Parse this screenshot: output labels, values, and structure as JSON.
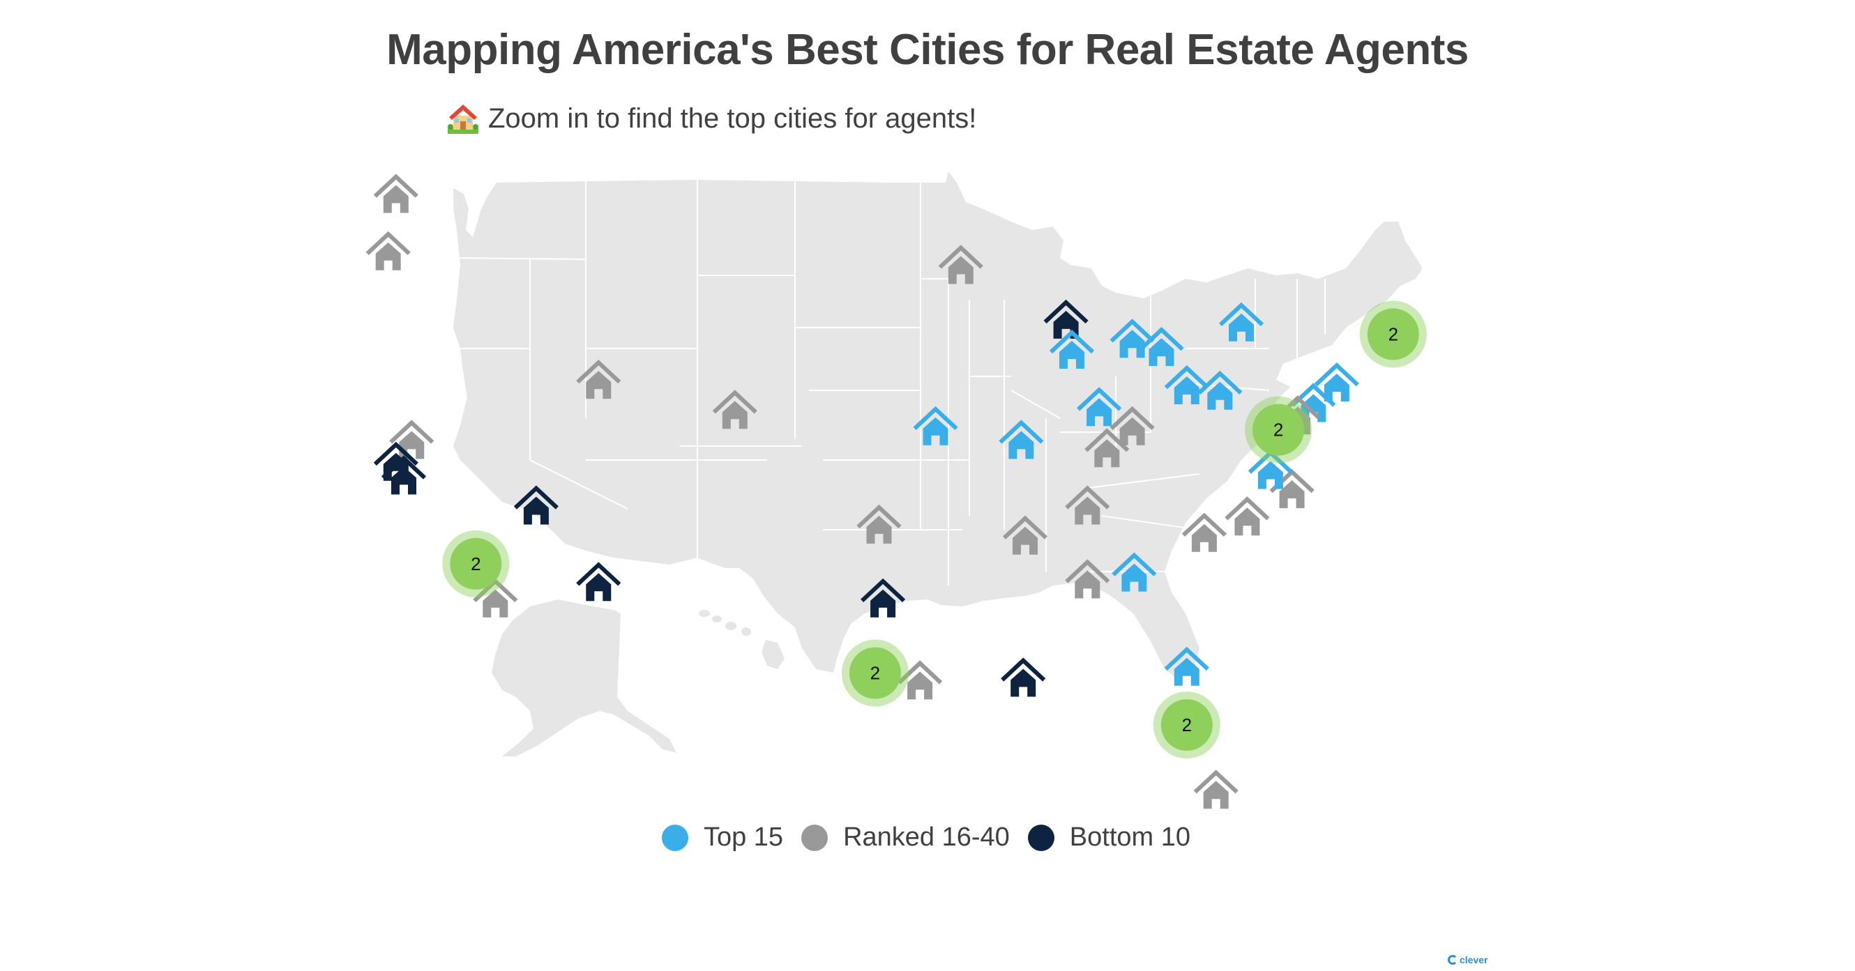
{
  "title": "Mapping America's Best Cities for Real Estate Agents",
  "subtitle": {
    "icon": "house-with-garden-icon",
    "text": "Zoom in to find the top cities for agents!"
  },
  "colors": {
    "top": "#3aaee8",
    "ranked": "#999999",
    "bottom": "#0d2340",
    "cluster": "#8fd05c",
    "land": "#e6e6e6",
    "border": "#ffffff"
  },
  "legend": [
    {
      "label": "Top 15",
      "group": "top",
      "color": "#3aaee8"
    },
    {
      "label": "Ranked 16-40",
      "group": "ranked",
      "color": "#999999"
    },
    {
      "label": "Bottom 10",
      "group": "bottom",
      "color": "#0d2340"
    }
  ],
  "markers": [
    {
      "group": "ranked",
      "lon": -122.3,
      "lat": 47.6
    },
    {
      "group": "ranked",
      "lon": -122.7,
      "lat": 45.5
    },
    {
      "group": "ranked",
      "lon": -121.5,
      "lat": 38.6
    },
    {
      "group": "bottom",
      "lon": -122.3,
      "lat": 37.8
    },
    {
      "group": "bottom",
      "lon": -121.9,
      "lat": 37.3
    },
    {
      "group": "bottom",
      "lon": -115.1,
      "lat": 36.2
    },
    {
      "group": "bottom",
      "lon": -111.9,
      "lat": 33.4
    },
    {
      "group": "ranked",
      "lon": -117.2,
      "lat": 32.8
    },
    {
      "group": "ranked",
      "lon": -111.9,
      "lat": 40.8
    },
    {
      "group": "ranked",
      "lon": -104.9,
      "lat": 39.7
    },
    {
      "group": "ranked",
      "lon": -93.3,
      "lat": 45.0
    },
    {
      "group": "top",
      "lon": -94.6,
      "lat": 39.1
    },
    {
      "group": "top",
      "lon": -90.2,
      "lat": 38.6
    },
    {
      "group": "ranked",
      "lon": -97.5,
      "lat": 35.5
    },
    {
      "group": "bottom",
      "lon": -97.3,
      "lat": 32.8
    },
    {
      "group": "ranked",
      "lon": -95.4,
      "lat": 29.8
    },
    {
      "group": "bottom",
      "lon": -90.1,
      "lat": 29.9
    },
    {
      "group": "bottom",
      "lon": -87.9,
      "lat": 43.0
    },
    {
      "group": "top",
      "lon": -87.6,
      "lat": 41.9
    },
    {
      "group": "top",
      "lon": -86.2,
      "lat": 39.8
    },
    {
      "group": "top",
      "lon": -84.5,
      "lat": 42.3
    },
    {
      "group": "top",
      "lon": -83.0,
      "lat": 42.0
    },
    {
      "group": "top",
      "lon": -78.9,
      "lat": 42.9
    },
    {
      "group": "top",
      "lon": -81.7,
      "lat": 40.6
    },
    {
      "group": "top",
      "lon": -80.0,
      "lat": 40.4
    },
    {
      "group": "ranked",
      "lon": -84.5,
      "lat": 39.1
    },
    {
      "group": "ranked",
      "lon": -85.8,
      "lat": 38.3
    },
    {
      "group": "ranked",
      "lon": -86.8,
      "lat": 36.2
    },
    {
      "group": "ranked",
      "lon": -90.0,
      "lat": 35.1
    },
    {
      "group": "ranked",
      "lon": -86.8,
      "lat": 33.5
    },
    {
      "group": "top",
      "lon": -84.4,
      "lat": 33.75
    },
    {
      "group": "ranked",
      "lon": -80.8,
      "lat": 35.2
    },
    {
      "group": "ranked",
      "lon": -78.6,
      "lat": 35.8
    },
    {
      "group": "ranked",
      "lon": -76.3,
      "lat": 36.8
    },
    {
      "group": "top",
      "lon": -77.4,
      "lat": 37.5
    },
    {
      "group": "top",
      "lon": -75.2,
      "lat": 39.95
    },
    {
      "group": "top",
      "lon": -74.0,
      "lat": 40.7
    },
    {
      "group": "ranked",
      "lon": -76.0,
      "lat": 39.5
    },
    {
      "group": "top",
      "lon": -81.7,
      "lat": 30.3
    },
    {
      "group": "ranked",
      "lon": -80.2,
      "lat": 25.8
    }
  ],
  "clusters": [
    {
      "count": "2",
      "lon": -118.2,
      "lat": 34.0
    },
    {
      "count": "2",
      "lon": -97.7,
      "lat": 30.0
    },
    {
      "count": "2",
      "lon": -81.7,
      "lat": 28.1
    },
    {
      "count": "2",
      "lon": -77.0,
      "lat": 38.9
    },
    {
      "count": "2",
      "lon": -71.1,
      "lat": 42.4
    }
  ],
  "brand": "clever"
}
